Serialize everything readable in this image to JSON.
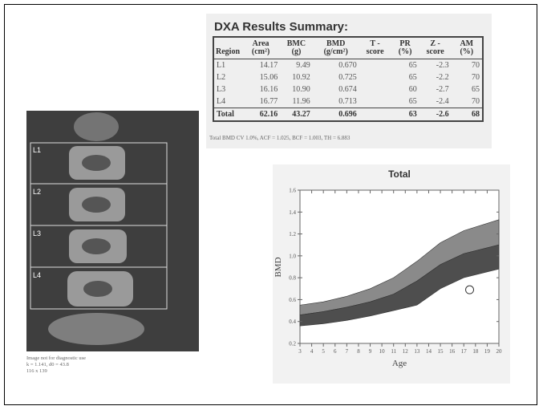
{
  "table": {
    "title": "DXA Results Summary:",
    "headers": [
      "Region",
      "Area (cm²)",
      "BMC (g)",
      "BMD (g/cm²)",
      "T - score",
      "PR (%)",
      "Z - score",
      "AM (%)"
    ],
    "rows": [
      {
        "region": "L1",
        "area": "14.17",
        "bmc": "9.49",
        "bmd": "0.670",
        "pr": "65",
        "z": "-2.3",
        "am": "70"
      },
      {
        "region": "L2",
        "area": "15.06",
        "bmc": "10.92",
        "bmd": "0.725",
        "pr": "65",
        "z": "-2.2",
        "am": "70"
      },
      {
        "region": "L3",
        "area": "16.16",
        "bmc": "10.90",
        "bmd": "0.674",
        "pr": "60",
        "z": "-2.7",
        "am": "65"
      },
      {
        "region": "L4",
        "area": "16.77",
        "bmc": "11.96",
        "bmd": "0.713",
        "pr": "65",
        "z": "-2.4",
        "am": "70"
      },
      {
        "region": "Total",
        "area": "62.16",
        "bmc": "43.27",
        "bmd": "0.696",
        "pr": "63",
        "z": "-2.6",
        "am": "68"
      }
    ],
    "footnote": "Total BMD CV 1.0%, ACF = 1.025, BCF = 1.003, TH = 6.883"
  },
  "scan": {
    "labels": [
      "L1",
      "L2",
      "L3",
      "L4"
    ],
    "notes": [
      "Image not for diagnostic use",
      "k = 1.141, d0 = 43.8",
      "116 x 139"
    ]
  },
  "chart": {
    "title": "Total",
    "xlabel": "Age",
    "ylabel": "BMD",
    "xlim": [
      3,
      20
    ],
    "ylim": [
      0.2,
      1.6
    ],
    "xticks": [
      3,
      4,
      5,
      6,
      7,
      8,
      9,
      10,
      11,
      12,
      13,
      14,
      15,
      16,
      17,
      18,
      19,
      20
    ],
    "yticks": [
      0.2,
      0.4,
      0.6,
      0.8,
      {
        "value": 1,
        "label": "1.0"
      },
      1.2,
      1.4,
      1.6
    ],
    "x": [
      3,
      5,
      7,
      9,
      11,
      13,
      15,
      17,
      20
    ],
    "edges": [
      [
        0.55,
        0.58,
        0.63,
        0.7,
        0.8,
        0.95,
        1.12,
        1.23,
        1.33
      ],
      [
        0.46,
        0.49,
        0.53,
        0.58,
        0.65,
        0.77,
        0.92,
        1.02,
        1.1
      ],
      [
        0.36,
        0.38,
        0.41,
        0.45,
        0.5,
        0.55,
        0.7,
        0.8,
        0.88
      ]
    ],
    "band_colors": [
      "#8a8a8a",
      "#4e4e4e"
    ],
    "point": {
      "x": 17.5,
      "y": 0.69
    }
  }
}
